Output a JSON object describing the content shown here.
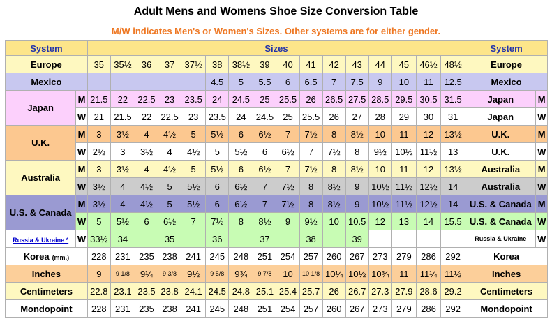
{
  "title": "Adult Mens and Womens Shoe Size Conversion Table",
  "subtitle": "M/W indicates Men's or Women's Sizes. Other systems are for either gender.",
  "header": {
    "system_left": "System",
    "sizes": "Sizes",
    "system_right": "System"
  },
  "rows": [
    {
      "label": "Europe",
      "mw": "",
      "right": "Europe",
      "bg": "bg-yellow",
      "values": [
        "35",
        "35½",
        "36",
        "37",
        "37½",
        "38",
        "38½",
        "39",
        "40",
        "41",
        "42",
        "43",
        "44",
        "45",
        "46½",
        "48½"
      ]
    },
    {
      "label": "Mexico",
      "mw": "",
      "right": "Mexico",
      "bg": "bg-blue",
      "values": [
        "",
        "",
        "",
        "",
        "",
        "4.5",
        "5",
        "5.5",
        "6",
        "6.5",
        "7",
        "7.5",
        "9",
        "10",
        "11",
        "12.5"
      ]
    },
    {
      "label": "Japan",
      "mw": "M",
      "right": "Japan",
      "bg": "bg-pink",
      "values": [
        "21.5",
        "22",
        "22.5",
        "23",
        "23.5",
        "24",
        "24.5",
        "25",
        "25.5",
        "26",
        "26.5",
        "27.5",
        "28.5",
        "29.5",
        "30.5",
        "31.5"
      ]
    },
    {
      "label": "Japan",
      "mw": "W",
      "right": "Japan",
      "bg": "bg-white",
      "values": [
        "21",
        "21.5",
        "22",
        "22.5",
        "23",
        "23.5",
        "24",
        "24.5",
        "25",
        "25.5",
        "26",
        "27",
        "28",
        "29",
        "30",
        "31"
      ]
    },
    {
      "label": "U.K.",
      "mw": "M",
      "right": "U.K.",
      "bg": "bg-orange",
      "values": [
        "3",
        "3½",
        "4",
        "4½",
        "5",
        "5½",
        "6",
        "6½",
        "7",
        "7½",
        "8",
        "8½",
        "10",
        "11",
        "12",
        "13½"
      ]
    },
    {
      "label": "U.K.",
      "mw": "W",
      "right": "U.K.",
      "bg": "bg-white",
      "values": [
        "2½",
        "3",
        "3½",
        "4",
        "4½",
        "5",
        "5½",
        "6",
        "6½",
        "7",
        "7½",
        "8",
        "9½",
        "10½",
        "11½",
        "13"
      ]
    },
    {
      "label": "Australia",
      "mw": "M",
      "right": "Australia",
      "bg": "bg-yellow",
      "values": [
        "3",
        "3½",
        "4",
        "4½",
        "5",
        "5½",
        "6",
        "6½",
        "7",
        "7½",
        "8",
        "8½",
        "10",
        "11",
        "12",
        "13½"
      ]
    },
    {
      "label": "Australia",
      "mw": "W",
      "right": "Australia",
      "bg": "bg-gray",
      "values": [
        "3½",
        "4",
        "4½",
        "5",
        "5½",
        "6",
        "6½",
        "7",
        "7½",
        "8",
        "8½",
        "9",
        "10½",
        "11½",
        "12½",
        "14"
      ]
    },
    {
      "label": "U.S. & Canada",
      "mw": "M",
      "right": "U.S. & Canada",
      "bg": "bg-purple",
      "values": [
        "3½",
        "4",
        "4½",
        "5",
        "5½",
        "6",
        "6½",
        "7",
        "7½",
        "8",
        "8½",
        "9",
        "10½",
        "11½",
        "12½",
        "14"
      ]
    },
    {
      "label": "U.S. & Canada",
      "mw": "W",
      "right": "U.S. & Canada",
      "bg": "bg-green",
      "values": [
        "5",
        "5½",
        "6",
        "6½",
        "7",
        "7½",
        "8",
        "8½",
        "9",
        "9½",
        "10",
        "10.5",
        "12",
        "13",
        "14",
        "15.5"
      ]
    },
    {
      "label": "Russia & Ukraine *",
      "mw": "W",
      "right": "Russia & Ukraine",
      "bg": "bg-white",
      "values": [
        "33½",
        "34",
        "",
        "35",
        "",
        "36",
        "",
        "37",
        "",
        "38",
        "",
        "39",
        "",
        "",
        "",
        ""
      ]
    },
    {
      "label": "Korea",
      "label_small": "(mm.)",
      "mw": "",
      "right": "Korea",
      "bg": "bg-white",
      "values": [
        "228",
        "231",
        "235",
        "238",
        "241",
        "245",
        "248",
        "251",
        "254",
        "257",
        "260",
        "267",
        "273",
        "279",
        "286",
        "292"
      ]
    },
    {
      "label": "Inches",
      "mw": "",
      "right": "Inches",
      "bg": "bg-orange2",
      "values": [
        "9",
        "9 1/8",
        "9¼",
        "9 3/8",
        "9½",
        "9 5/8",
        "9¾",
        "9 7/8",
        "10",
        "10 1/8",
        "10¼",
        "10½",
        "10¾",
        "11",
        "11¼",
        "11½"
      ]
    },
    {
      "label": "Centimeters",
      "mw": "",
      "right": "Centimeters",
      "bg": "bg-yellow",
      "values": [
        "22.8",
        "23.1",
        "23.5",
        "23.8",
        "24.1",
        "24.5",
        "24.8",
        "25.1",
        "25.4",
        "25.7",
        "26",
        "26.7",
        "27.3",
        "27.9",
        "28.6",
        "29.2"
      ]
    },
    {
      "label": "Mondopoint",
      "mw": "",
      "right": "Mondopoint",
      "bg": "bg-white",
      "values": [
        "228",
        "231",
        "235",
        "238",
        "241",
        "245",
        "248",
        "251",
        "254",
        "257",
        "260",
        "267",
        "273",
        "279",
        "286",
        "292"
      ]
    }
  ]
}
